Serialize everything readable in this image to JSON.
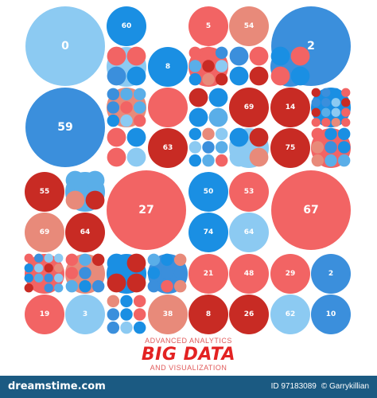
{
  "colors": {
    "palette": [
      "#3b8fdc",
      "#1a8fe3",
      "#8ccaf2",
      "#f26464",
      "#c82b24",
      "#e88a7a",
      "#5aaee8"
    ],
    "text_accent": "#e32222",
    "footer": "#1b5a82"
  },
  "bubble_numbers": [
    "0",
    "60",
    "5",
    "54",
    "2",
    "8",
    "59",
    "69",
    "14",
    "63",
    "75",
    "55",
    "27",
    "50",
    "53",
    "67",
    "69",
    "64",
    "74",
    "64",
    "21",
    "48",
    "29",
    "2",
    "19",
    "3",
    "38",
    "8",
    "26",
    "62",
    "10"
  ],
  "headline": {
    "line1": "ADVANCED ANALYTICS",
    "title": "BIG DATA",
    "line2": "AND VISUALIZATION"
  },
  "footer": {
    "brand": "dreamstime.com",
    "id": "ID 97183089",
    "author": "© Garrykillian"
  }
}
